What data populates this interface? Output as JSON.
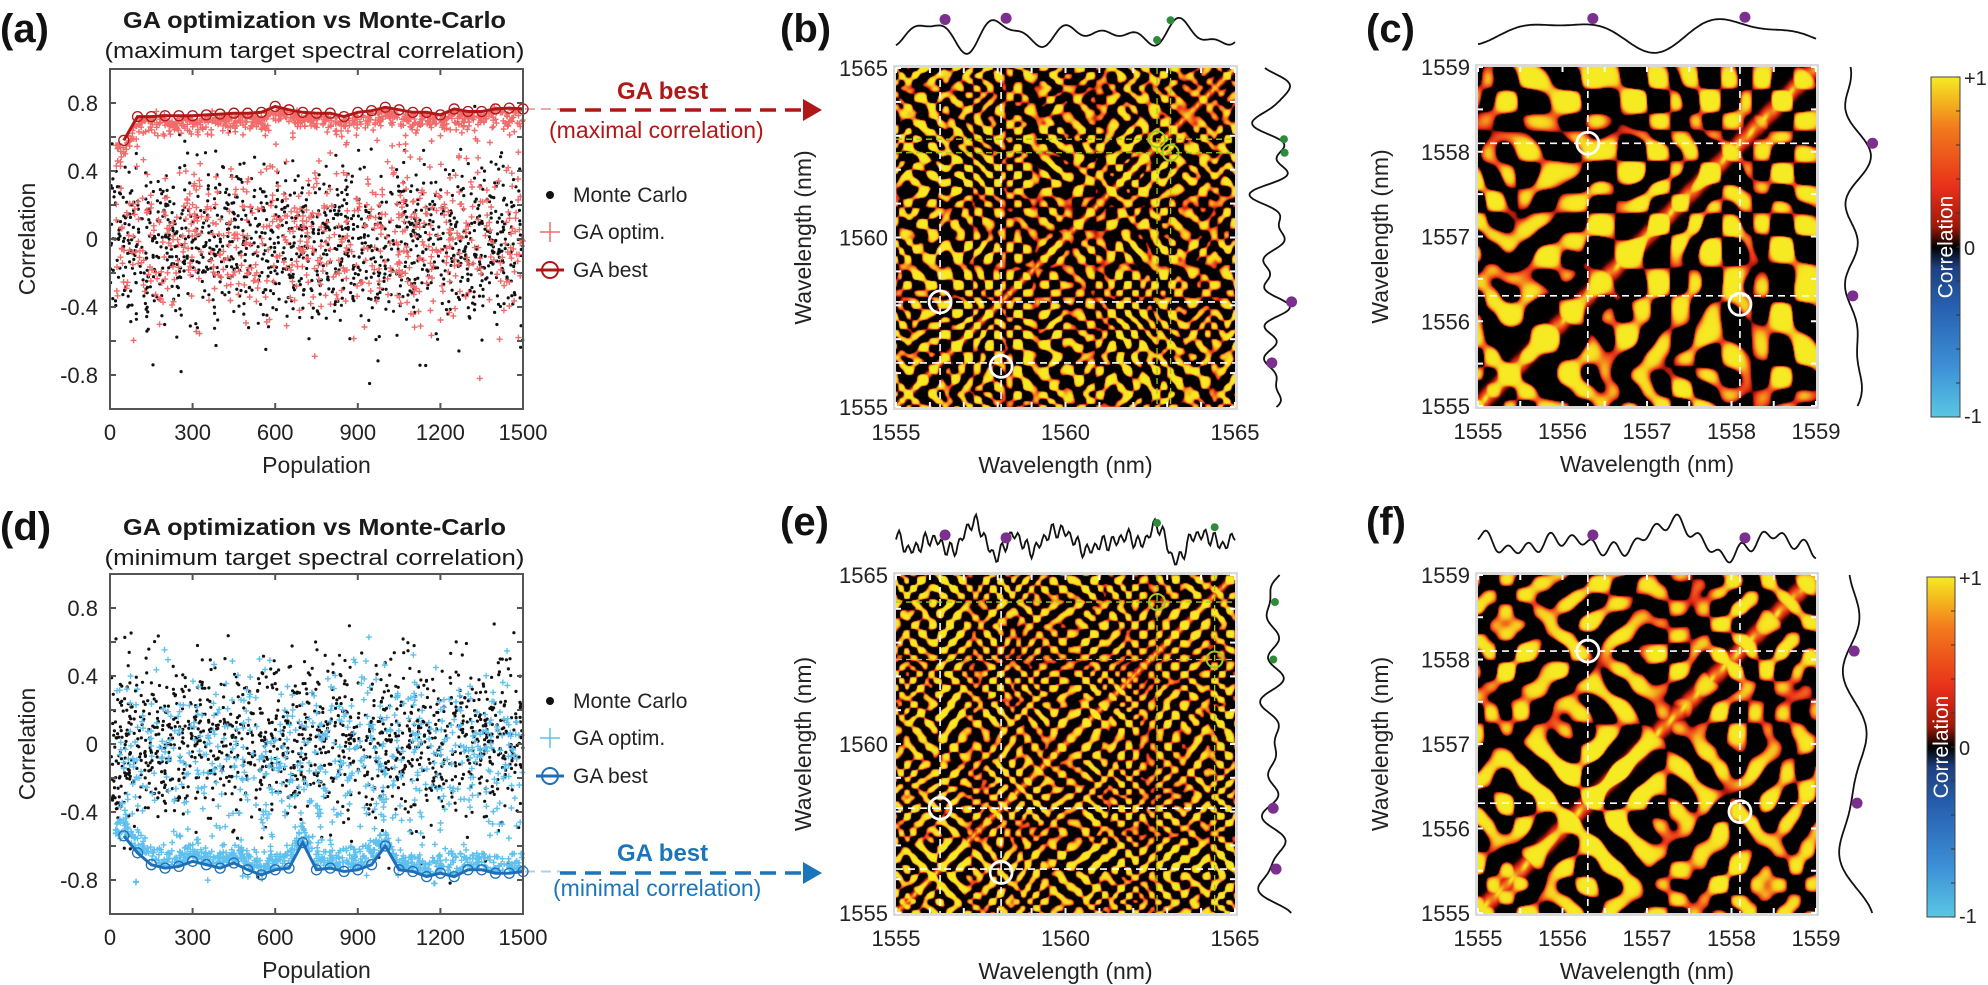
{
  "chart_data": [
    {
      "type": "scatter",
      "panel_label": "(a)",
      "title": "GA optimization vs Monte-Carlo",
      "subtitle": "(maximum target spectral correlation)",
      "xlabel": "Population",
      "ylabel": "Correlation",
      "xlim": [
        0,
        1500
      ],
      "ylim": [
        -1,
        1
      ],
      "xticks": [
        0,
        300,
        600,
        900,
        1200,
        1500
      ],
      "yticks": [
        -0.8,
        -0.4,
        0,
        0.4,
        0.8
      ],
      "legend_position": "right",
      "legend": [
        {
          "label": "Monte Carlo",
          "marker": "dot",
          "color": "#111111"
        },
        {
          "label": "GA optim.",
          "marker": "plus",
          "color": "#f26b6b"
        },
        {
          "label": "GA best",
          "marker": "line-circle",
          "color": "#b01818"
        }
      ],
      "series": [
        {
          "name": "GA best",
          "x": [
            50,
            100,
            150,
            200,
            250,
            300,
            350,
            400,
            450,
            500,
            550,
            600,
            650,
            700,
            750,
            800,
            850,
            900,
            950,
            1000,
            1050,
            1100,
            1150,
            1200,
            1250,
            1300,
            1350,
            1400,
            1450,
            1500
          ],
          "y": [
            0.58,
            0.72,
            0.72,
            0.725,
            0.725,
            0.725,
            0.73,
            0.735,
            0.74,
            0.74,
            0.745,
            0.78,
            0.76,
            0.745,
            0.74,
            0.74,
            0.72,
            0.745,
            0.755,
            0.775,
            0.76,
            0.745,
            0.745,
            0.73,
            0.765,
            0.75,
            0.75,
            0.765,
            0.77,
            0.765
          ]
        }
      ],
      "annotation": {
        "title": "GA best",
        "subtitle": "(maximal correlation)",
        "color": "#b01818"
      }
    },
    {
      "type": "heatmap",
      "panel_label": "(b)",
      "xlabel": "Wavelength (nm)",
      "ylabel": "Wavelength (nm)",
      "xlim": [
        1555,
        1565
      ],
      "ylim": [
        1555,
        1565
      ],
      "xticks": [
        1555,
        1560,
        1565
      ],
      "yticks": [
        1555,
        1560,
        1565
      ],
      "value_range": [
        -1,
        1
      ],
      "white_guides": [
        1556.3,
        1558.1
      ],
      "white_circles": [
        [
          1556.3,
          1558.1
        ],
        [
          1558.1,
          1556.2
        ]
      ],
      "green_guides_x": [
        1562.7,
        1563.1
      ],
      "green_guides_y": [
        1562.9,
        1562.5
      ],
      "green_circles": [
        [
          1562.7,
          1562.9
        ],
        [
          1563.1,
          1562.5
        ]
      ],
      "marker_colors": {
        "white": "#ffffff",
        "green": "#a6c81e",
        "purple": "#7b2f8e",
        "green_dot": "#2e8b3a"
      }
    },
    {
      "type": "heatmap",
      "panel_label": "(c)",
      "xlabel": "Wavelength (nm)",
      "ylabel": "Wavelength (nm)",
      "xlim": [
        1555,
        1559
      ],
      "ylim": [
        1555,
        1559
      ],
      "xticks": [
        1555,
        1556,
        1557,
        1558,
        1559
      ],
      "yticks": [
        1555,
        1556,
        1557,
        1558,
        1559
      ],
      "value_range": [
        -1,
        1
      ],
      "white_guides": [
        1556.3,
        1558.1
      ],
      "white_circles": [
        [
          1556.3,
          1558.1
        ],
        [
          1558.1,
          1556.2
        ]
      ],
      "colorbar": {
        "label": "Correlation",
        "ticks": [
          "+1",
          "0",
          "-1"
        ],
        "colors": [
          "#59c7e3",
          "#3d8fd6",
          "#2760b0",
          "#1d3f80",
          "#000000",
          "#a01808",
          "#e8301a",
          "#f27a1c",
          "#f6ea22"
        ]
      }
    },
    {
      "type": "scatter",
      "panel_label": "(d)",
      "title": "GA optimization vs Monte-Carlo",
      "subtitle": "(minimum target spectral correlation)",
      "xlabel": "Population",
      "ylabel": "Correlation",
      "xlim": [
        0,
        1500
      ],
      "ylim": [
        -1,
        1
      ],
      "xticks": [
        0,
        300,
        600,
        900,
        1200,
        1500
      ],
      "yticks": [
        -0.8,
        -0.4,
        0,
        0.4,
        0.8
      ],
      "legend_position": "right",
      "legend": [
        {
          "label": "Monte Carlo",
          "marker": "dot",
          "color": "#111111"
        },
        {
          "label": "GA optim.",
          "marker": "plus",
          "color": "#5ec0ee"
        },
        {
          "label": "GA best",
          "marker": "line-circle",
          "color": "#1f6fb8"
        }
      ],
      "series": [
        {
          "name": "GA best",
          "x": [
            50,
            100,
            150,
            200,
            250,
            300,
            350,
            400,
            450,
            500,
            550,
            600,
            650,
            700,
            750,
            800,
            850,
            900,
            950,
            1000,
            1050,
            1100,
            1150,
            1200,
            1250,
            1300,
            1350,
            1400,
            1450,
            1500
          ],
          "y": [
            -0.54,
            -0.64,
            -0.71,
            -0.73,
            -0.72,
            -0.69,
            -0.71,
            -0.73,
            -0.7,
            -0.74,
            -0.77,
            -0.74,
            -0.73,
            -0.58,
            -0.74,
            -0.73,
            -0.75,
            -0.74,
            -0.71,
            -0.6,
            -0.74,
            -0.75,
            -0.78,
            -0.76,
            -0.78,
            -0.74,
            -0.74,
            -0.76,
            -0.76,
            -0.75
          ]
        }
      ],
      "annotation": {
        "title": "GA best",
        "subtitle": "(minimal correlation)",
        "color": "#1b75bb"
      }
    },
    {
      "type": "heatmap",
      "panel_label": "(e)",
      "xlabel": "Wavelength (nm)",
      "ylabel": "Wavelength (nm)",
      "xlim": [
        1555,
        1565
      ],
      "ylim": [
        1555,
        1565
      ],
      "xticks": [
        1555,
        1560,
        1565
      ],
      "yticks": [
        1555,
        1560,
        1565
      ],
      "value_range": [
        -1,
        1
      ],
      "white_guides": [
        1556.3,
        1558.1
      ],
      "white_circles": [
        [
          1556.3,
          1558.1
        ],
        [
          1558.1,
          1556.2
        ]
      ],
      "green_guides_x": [
        1562.7,
        1564.4
      ],
      "green_guides_y": [
        1564.2,
        1562.5
      ],
      "green_circles": [
        [
          1562.7,
          1564.2
        ],
        [
          1564.4,
          1562.5
        ]
      ]
    },
    {
      "type": "heatmap",
      "panel_label": "(f)",
      "xlabel": "Wavelength (nm)",
      "ylabel": "Wavelength (nm)",
      "xlim": [
        1555,
        1559
      ],
      "ylim": [
        1555,
        1559
      ],
      "xticks": [
        1555,
        1556,
        1557,
        1558,
        1559
      ],
      "yticks": [
        1555,
        1556,
        1557,
        1558,
        1559
      ],
      "value_range": [
        -1,
        1
      ],
      "white_guides": [
        1556.3,
        1558.1
      ],
      "white_circles": [
        [
          1556.3,
          1558.1
        ],
        [
          1558.1,
          1556.2
        ]
      ],
      "colorbar": {
        "label": "Correlation",
        "ticks": [
          "+1",
          "0",
          "-1"
        ],
        "colors": [
          "#59c7e3",
          "#3d8fd6",
          "#2760b0",
          "#1d3f80",
          "#000000",
          "#a01808",
          "#e8301a",
          "#f27a1c",
          "#f6ea22"
        ]
      }
    }
  ]
}
